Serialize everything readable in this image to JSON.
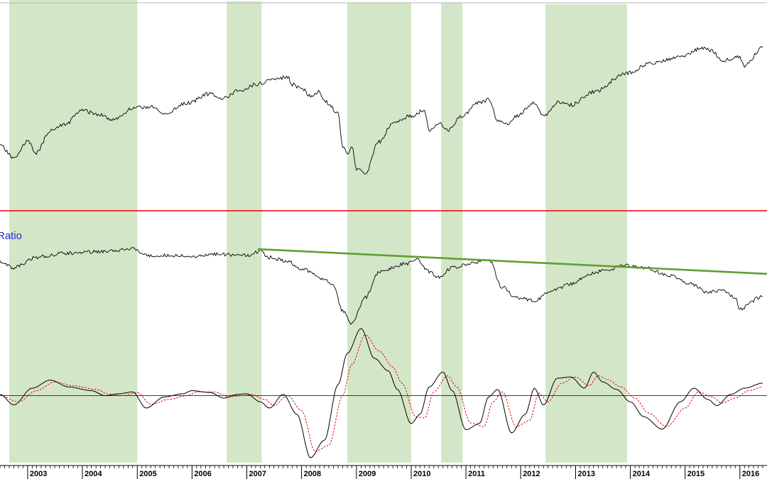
{
  "chart_data": {
    "type": "line",
    "title": "",
    "x_axis": {
      "type": "date",
      "range": [
        "2002-07-01",
        "2016-06-30"
      ],
      "tick_labels": [
        "2003",
        "2004",
        "2005",
        "2006",
        "2007",
        "2008",
        "2009",
        "2010",
        "2011",
        "2012",
        "2013",
        "2014",
        "2015",
        "2016"
      ],
      "minor_ticks": "monthly"
    },
    "colors": {
      "price": "#000000",
      "ratio": "#000000",
      "oscillator": "#000000",
      "signal": "#e60000",
      "trendline": "#5fa030",
      "divider": "#e60000",
      "shading": "#d4e6c8",
      "ratio_label": "#1a2ecc"
    },
    "shaded_periods": [
      {
        "start": "2002-09-01",
        "end": "2005-01-01"
      },
      {
        "start": "2006-08-20",
        "end": "2007-04-10"
      },
      {
        "start": "2008-11-01",
        "end": "2010-01-01"
      },
      {
        "start": "2010-07-20",
        "end": "2010-12-10"
      },
      {
        "start": "2012-06-15",
        "end": "2013-12-10"
      }
    ],
    "panels": [
      {
        "name": "price",
        "label": "",
        "y_range": [
          0,
          100
        ],
        "series": [
          {
            "name": "",
            "x": [
              "2002-07",
              "2002-10",
              "2003-01",
              "2003-03",
              "2003-06",
              "2003-09",
              "2004-01",
              "2004-04",
              "2004-08",
              "2004-12",
              "2005-04",
              "2005-07",
              "2005-12",
              "2006-05",
              "2006-07",
              "2006-12",
              "2007-03",
              "2007-07",
              "2007-10",
              "2007-11",
              "2008-01",
              "2008-03",
              "2008-05",
              "2008-06",
              "2008-09",
              "2008-10",
              "2008-11",
              "2008-12",
              "2009-01",
              "2009-03",
              "2009-06",
              "2009-09",
              "2010-01",
              "2010-04",
              "2010-05",
              "2010-07",
              "2010-09",
              "2010-12",
              "2011-04",
              "2011-06",
              "2011-08",
              "2011-10",
              "2011-12",
              "2012-04",
              "2012-06",
              "2012-09",
              "2012-12",
              "2013-05",
              "2013-12",
              "2014-06",
              "2014-12",
              "2015-05",
              "2015-07",
              "2015-09",
              "2016-01",
              "2016-02",
              "2016-06"
            ],
            "y": [
              27,
              20,
              29,
              23,
              35,
              38,
              46,
              44,
              41,
              47,
              48,
              44,
              50,
              55,
              52,
              57,
              60,
              63,
              64,
              60,
              58,
              54,
              56,
              51,
              45,
              26,
              22,
              27,
              14,
              12,
              29,
              39,
              43,
              46,
              35,
              39,
              35,
              43,
              50,
              52,
              40,
              38,
              43,
              50,
              43,
              50,
              49,
              56,
              66,
              72,
              75,
              80,
              78,
              73,
              75,
              70,
              80
            ]
          }
        ]
      },
      {
        "name": "ratio",
        "label": "Ratio",
        "y_range": [
          0,
          100
        ],
        "series": [
          {
            "name": "",
            "x": [
              "2002-07",
              "2002-10",
              "2003-03",
              "2003-09",
              "2004-06",
              "2004-12",
              "2005-03",
              "2005-07",
              "2006-01",
              "2006-07",
              "2007-01",
              "2007-04",
              "2007-06",
              "2007-10",
              "2008-01",
              "2008-03",
              "2008-06",
              "2008-08",
              "2008-10",
              "2008-12",
              "2009-03",
              "2009-06",
              "2009-12",
              "2010-02",
              "2010-05",
              "2010-07",
              "2010-10",
              "2011-02",
              "2011-06",
              "2011-09",
              "2011-12",
              "2012-04",
              "2012-08",
              "2012-12",
              "2013-04",
              "2013-08",
              "2013-12",
              "2014-04",
              "2014-10",
              "2015-02",
              "2015-06",
              "2015-09",
              "2015-12",
              "2016-01",
              "2016-06"
            ],
            "y": [
              70,
              64,
              74,
              78,
              80,
              82,
              76,
              76,
              75,
              77,
              76,
              80,
              74,
              70,
              63,
              60,
              52,
              46,
              22,
              9,
              35,
              60,
              68,
              72,
              60,
              55,
              64,
              68,
              72,
              45,
              35,
              32,
              42,
              48,
              58,
              62,
              66,
              64,
              56,
              48,
              40,
              42,
              35,
              24,
              36
            ]
          },
          {
            "name": "",
            "x": [
              "2007-03-15",
              "2016-06-30"
            ],
            "y": [
              82,
              58
            ]
          }
        ]
      },
      {
        "name": "oscillator",
        "label": "",
        "y_range": [
          -100,
          100
        ],
        "zero_line": 0,
        "series": [
          {
            "name": "",
            "x": [
              "2002-07",
              "2002-10",
              "2003-02",
              "2003-06",
              "2003-10",
              "2004-03",
              "2004-06",
              "2004-09",
              "2004-12",
              "2005-03",
              "2005-07",
              "2005-11",
              "2006-01",
              "2006-05",
              "2006-08",
              "2006-11",
              "2007-01",
              "2007-04",
              "2007-06",
              "2007-09",
              "2007-12",
              "2008-03",
              "2008-06",
              "2008-09",
              "2008-11",
              "2009-02",
              "2009-05",
              "2009-08",
              "2009-10",
              "2010-01",
              "2010-03",
              "2010-05",
              "2010-08",
              "2010-10",
              "2011-01",
              "2011-04",
              "2011-06",
              "2011-08",
              "2011-11",
              "2012-02",
              "2012-04",
              "2012-06",
              "2012-09",
              "2012-12",
              "2013-03",
              "2013-05",
              "2013-07",
              "2013-10",
              "2014-01",
              "2014-04",
              "2014-08",
              "2014-12",
              "2015-03",
              "2015-06",
              "2015-08",
              "2015-11",
              "2016-02",
              "2016-06"
            ],
            "y": [
              2,
              -15,
              12,
              25,
              14,
              8,
              0,
              3,
              6,
              -20,
              -2,
              3,
              8,
              5,
              -4,
              2,
              3,
              -10,
              -20,
              2,
              -30,
              -100,
              -72,
              18,
              68,
              108,
              60,
              40,
              10,
              -45,
              -30,
              14,
              38,
              8,
              -55,
              -45,
              -2,
              10,
              -60,
              -30,
              12,
              -15,
              28,
              30,
              12,
              38,
              22,
              10,
              -10,
              -34,
              -54,
              -10,
              12,
              -6,
              -16,
              2,
              12,
              20
            ]
          },
          {
            "name": "",
            "x": [
              "2002-07",
              "2002-11",
              "2003-03",
              "2003-07",
              "2003-11",
              "2004-04",
              "2004-07",
              "2004-10",
              "2005-01",
              "2005-04",
              "2005-08",
              "2005-12",
              "2006-02",
              "2006-06",
              "2006-09",
              "2006-12",
              "2007-02",
              "2007-05",
              "2007-07",
              "2007-10",
              "2008-01",
              "2008-04",
              "2008-07",
              "2008-10",
              "2008-12",
              "2009-03",
              "2009-06",
              "2009-09",
              "2009-11",
              "2010-02",
              "2010-04",
              "2010-06",
              "2010-09",
              "2010-11",
              "2011-02",
              "2011-05",
              "2011-07",
              "2011-09",
              "2011-12",
              "2012-03",
              "2012-05",
              "2012-07",
              "2012-10",
              "2013-01",
              "2013-04",
              "2013-06",
              "2013-08",
              "2013-11",
              "2014-02",
              "2014-05",
              "2014-09",
              "2015-01",
              "2015-04",
              "2015-07",
              "2015-09",
              "2015-12",
              "2016-03",
              "2016-06"
            ],
            "y": [
              0,
              -10,
              8,
              22,
              16,
              10,
              2,
              0,
              5,
              -14,
              -6,
              0,
              6,
              6,
              -2,
              0,
              2,
              -6,
              -16,
              0,
              -24,
              -90,
              -80,
              0,
              50,
              98,
              72,
              46,
              20,
              -34,
              -36,
              6,
              32,
              14,
              -44,
              -50,
              -10,
              6,
              -50,
              -40,
              4,
              -10,
              20,
              30,
              16,
              32,
              26,
              14,
              -4,
              -28,
              -50,
              -20,
              6,
              -2,
              -12,
              -4,
              8,
              14
            ]
          }
        ]
      }
    ]
  }
}
